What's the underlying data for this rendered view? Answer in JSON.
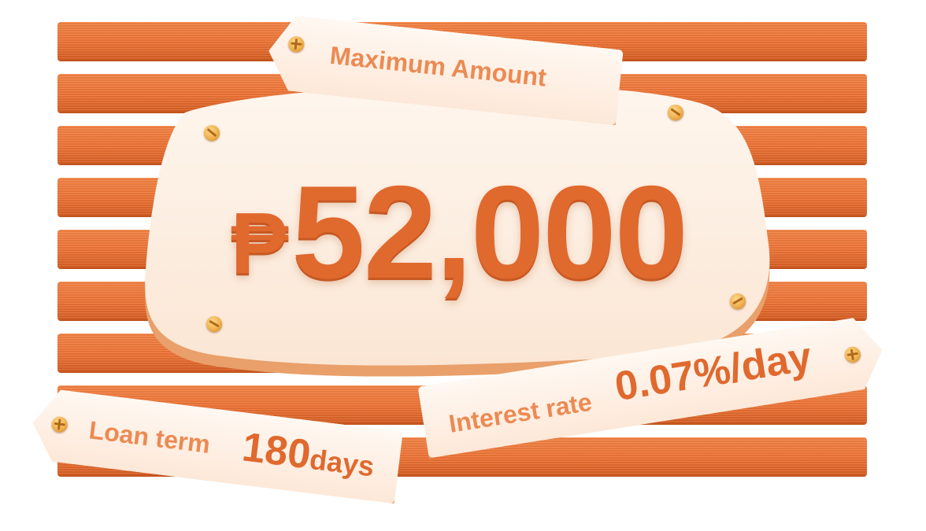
{
  "amount": {
    "currency": "₱",
    "value": "52,000"
  },
  "tags": {
    "maximum": {
      "label": "Maximum Amount"
    },
    "interest": {
      "label": "Interest rate",
      "value": "0.07%/day"
    },
    "term": {
      "label": "Loan term",
      "value_number": "180",
      "value_unit": "days"
    }
  },
  "colors": {
    "stripe": "#ee7436",
    "plaque": "#fdf1e6",
    "text": "#e0692e",
    "screw": "#f0b04f"
  }
}
